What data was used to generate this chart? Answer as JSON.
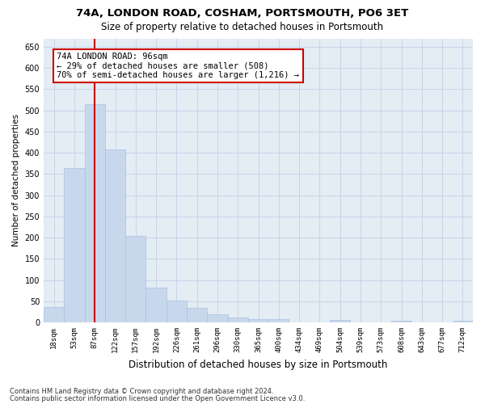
{
  "title1": "74A, LONDON ROAD, COSHAM, PORTSMOUTH, PO6 3ET",
  "title2": "Size of property relative to detached houses in Portsmouth",
  "xlabel": "Distribution of detached houses by size in Portsmouth",
  "ylabel": "Number of detached properties",
  "bar_color": "#c8d8ec",
  "bar_edge_color": "#a8c0de",
  "grid_color": "#c8d4e8",
  "bg_color": "#e4ecf4",
  "vline_color": "#cc0000",
  "vline_x": 2,
  "annotation_text": "74A LONDON ROAD: 96sqm\n← 29% of detached houses are smaller (508)\n70% of semi-detached houses are larger (1,216) →",
  "annotation_box_color": "#ffffff",
  "annotation_box_edge": "#cc0000",
  "categories": [
    "18sqm",
    "53sqm",
    "87sqm",
    "122sqm",
    "157sqm",
    "192sqm",
    "226sqm",
    "261sqm",
    "296sqm",
    "330sqm",
    "365sqm",
    "400sqm",
    "434sqm",
    "469sqm",
    "504sqm",
    "539sqm",
    "573sqm",
    "608sqm",
    "643sqm",
    "677sqm",
    "712sqm"
  ],
  "values": [
    36,
    365,
    515,
    408,
    204,
    82,
    52,
    34,
    20,
    11,
    7,
    7,
    0,
    0,
    5,
    0,
    0,
    4,
    0,
    0,
    4
  ],
  "ylim": [
    0,
    670
  ],
  "yticks": [
    0,
    50,
    100,
    150,
    200,
    250,
    300,
    350,
    400,
    450,
    500,
    550,
    600,
    650
  ],
  "footer1": "Contains HM Land Registry data © Crown copyright and database right 2024.",
  "footer2": "Contains public sector information licensed under the Open Government Licence v3.0."
}
